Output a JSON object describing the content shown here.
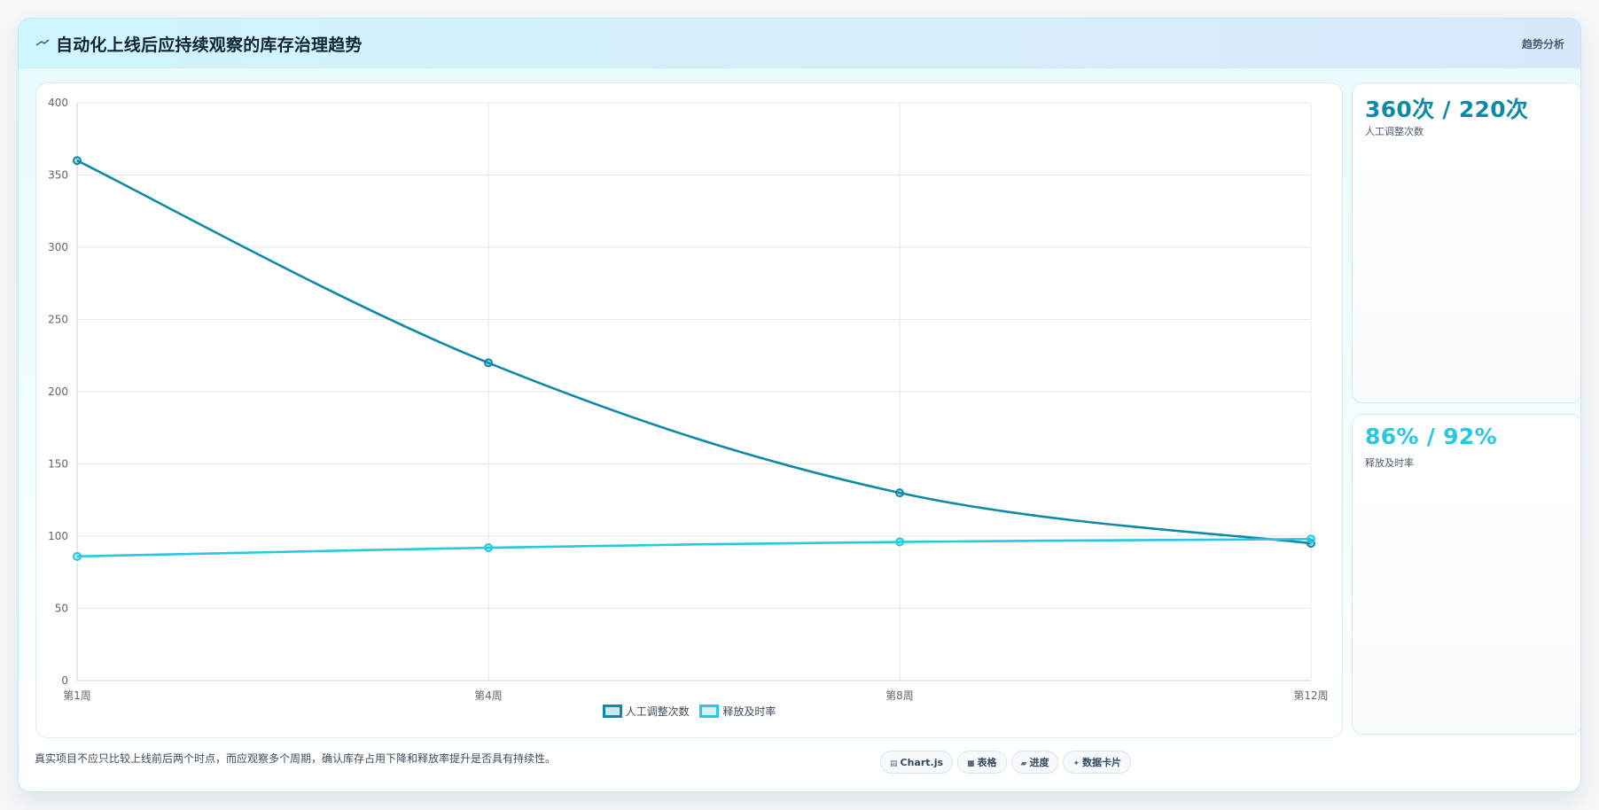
{
  "header": {
    "title": "自动化上线后应持续观察的库存治理趋势",
    "tag": "趋势分析"
  },
  "colors": {
    "primary": "#0e8aa6",
    "secondary": "#28c8e0",
    "header_bg": "#cff6fb"
  },
  "chart_data": {
    "type": "line",
    "categories": [
      "第1周",
      "第4周",
      "第8周",
      "第12周"
    ],
    "series": [
      {
        "name": "人工调整次数",
        "values": [
          360,
          220,
          130,
          95
        ],
        "color": "#0e8aa6"
      },
      {
        "name": "释放及时率",
        "values": [
          86,
          92,
          96,
          98
        ],
        "color": "#28c8e0"
      }
    ],
    "y_ticks": [
      "0",
      "50",
      "100",
      "150",
      "200",
      "250",
      "300",
      "350",
      "400"
    ],
    "ylim": [
      0,
      400
    ],
    "grid": true,
    "legend_position": "bottom-center"
  },
  "stats": [
    {
      "value": "360次 / 220次",
      "label": "人工调整次数",
      "color": "#0e8aa6"
    },
    {
      "value": "86% / 92%",
      "label": "释放及时率",
      "color": "#28c8e0"
    }
  ],
  "footer": {
    "note": "真实项目不应只比较上线前后两个时点，而应观察多个周期，确认库存占用下降和释放率提升是否具有持续性。",
    "chips": [
      {
        "icon": "chart-icon",
        "glyph": "▤",
        "label": "Chart.js"
      },
      {
        "icon": "table-icon",
        "glyph": "■",
        "label": "表格"
      },
      {
        "icon": "progress-icon",
        "glyph": "▰",
        "label": "进度"
      },
      {
        "icon": "datacard-icon",
        "glyph": "✦",
        "label": "数据卡片"
      }
    ]
  }
}
